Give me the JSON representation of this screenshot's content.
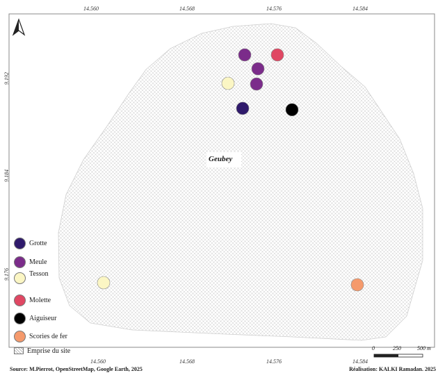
{
  "map": {
    "site_name": "Geubey",
    "top_ticks": [
      "14.560",
      "14.568",
      "14.576",
      "14.584"
    ],
    "bottom_ticks": [
      "14.560",
      "14.568",
      "14.576",
      "14.584"
    ],
    "left_ticks": [
      "9.192",
      "9.184",
      "9.176"
    ]
  },
  "legend": {
    "items": [
      {
        "label": "Grotte",
        "color": "#2f1a6b"
      },
      {
        "label": "Meule",
        "color": "#7b2c8a"
      },
      {
        "label": "Tesson",
        "color": "#fbf6c4"
      },
      {
        "label": "Molette",
        "color": "#e04763"
      },
      {
        "label": "Aiguiseur",
        "color": "#000000"
      },
      {
        "label": "Scories de fer",
        "color": "#f59a6c"
      }
    ],
    "site_extent_label": "Emprise du site"
  },
  "points": [
    {
      "type": "Meule",
      "color": "#7b2c8a"
    },
    {
      "type": "Molette",
      "color": "#e04763"
    },
    {
      "type": "Meule",
      "color": "#7b2c8a"
    },
    {
      "type": "Tesson",
      "color": "#fbf6c4"
    },
    {
      "type": "Meule",
      "color": "#7b2c8a"
    },
    {
      "type": "Grotte",
      "color": "#2f1a6b"
    },
    {
      "type": "Aiguiseur",
      "color": "#000000"
    },
    {
      "type": "Tesson",
      "color": "#fbf6c4"
    },
    {
      "type": "Scories de fer",
      "color": "#f59a6c"
    }
  ],
  "scale": {
    "labels": [
      "0",
      "250",
      "500 m"
    ]
  },
  "footer": {
    "source": "Source: M.Pierrot, OpenStreetMap, Google Earth, 2025",
    "credit": "Réalisation: KALKI Ramadan. 2025"
  }
}
